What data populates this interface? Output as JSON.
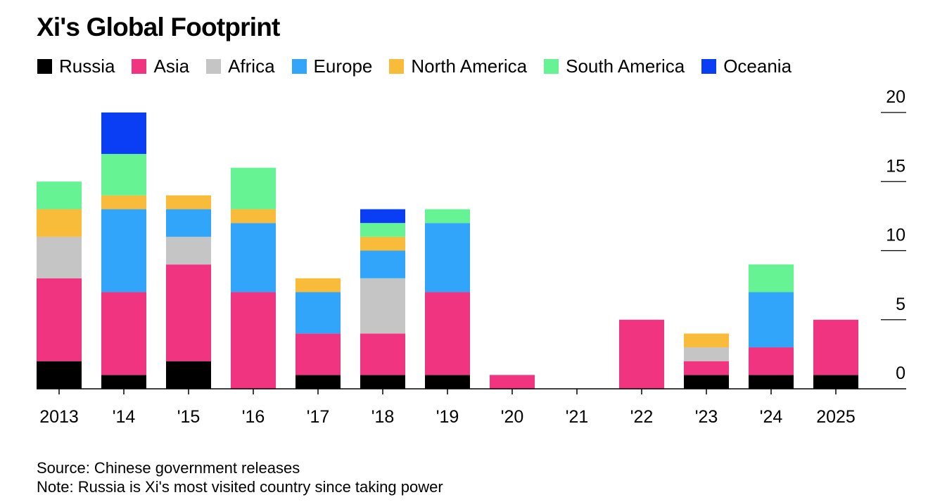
{
  "chart_data": {
    "type": "bar",
    "stacked": true,
    "title": "Xi's Global Footprint",
    "xlabel": "",
    "ylabel": "",
    "ylim": [
      0,
      20
    ],
    "yticks": [
      0,
      5,
      10,
      15,
      20
    ],
    "ytick_labels": [
      "0",
      "5",
      "10",
      "15",
      "20"
    ],
    "y_axis_side": "right",
    "grid": false,
    "legend_position": "top-left",
    "categories": [
      "2013",
      "'14",
      "'15",
      "'16",
      "'17",
      "'18",
      "'19",
      "'20",
      "'21",
      "'22",
      "'23",
      "'24",
      "2025"
    ],
    "series": [
      {
        "name": "Russia",
        "color": "#000000",
        "values": [
          2,
          1,
          2,
          0,
          1,
          1,
          1,
          0,
          0,
          0,
          1,
          1,
          1
        ]
      },
      {
        "name": "Asia",
        "color": "#f03480",
        "values": [
          6,
          6,
          7,
          7,
          3,
          3,
          6,
          1,
          0,
          5,
          1,
          2,
          4
        ]
      },
      {
        "name": "Africa",
        "color": "#c5c5c5",
        "values": [
          3,
          0,
          2,
          0,
          0,
          4,
          0,
          0,
          0,
          0,
          1,
          0,
          0
        ]
      },
      {
        "name": "Europe",
        "color": "#31a5fa",
        "values": [
          0,
          6,
          2,
          5,
          3,
          2,
          5,
          0,
          0,
          0,
          0,
          4,
          0
        ]
      },
      {
        "name": "North America",
        "color": "#f8bc3a",
        "values": [
          2,
          1,
          1,
          1,
          1,
          1,
          0,
          0,
          0,
          0,
          1,
          0,
          0
        ]
      },
      {
        "name": "South America",
        "color": "#66f393",
        "values": [
          2,
          3,
          0,
          3,
          0,
          1,
          1,
          0,
          0,
          0,
          0,
          2,
          0
        ]
      },
      {
        "name": "Oceania",
        "color": "#0a3ef5",
        "values": [
          0,
          3,
          0,
          0,
          0,
          1,
          0,
          0,
          0,
          0,
          0,
          0,
          0
        ]
      }
    ]
  },
  "footer": {
    "source": "Source: Chinese government releases",
    "note": "Note: Russia is Xi's most visited country since taking power"
  }
}
